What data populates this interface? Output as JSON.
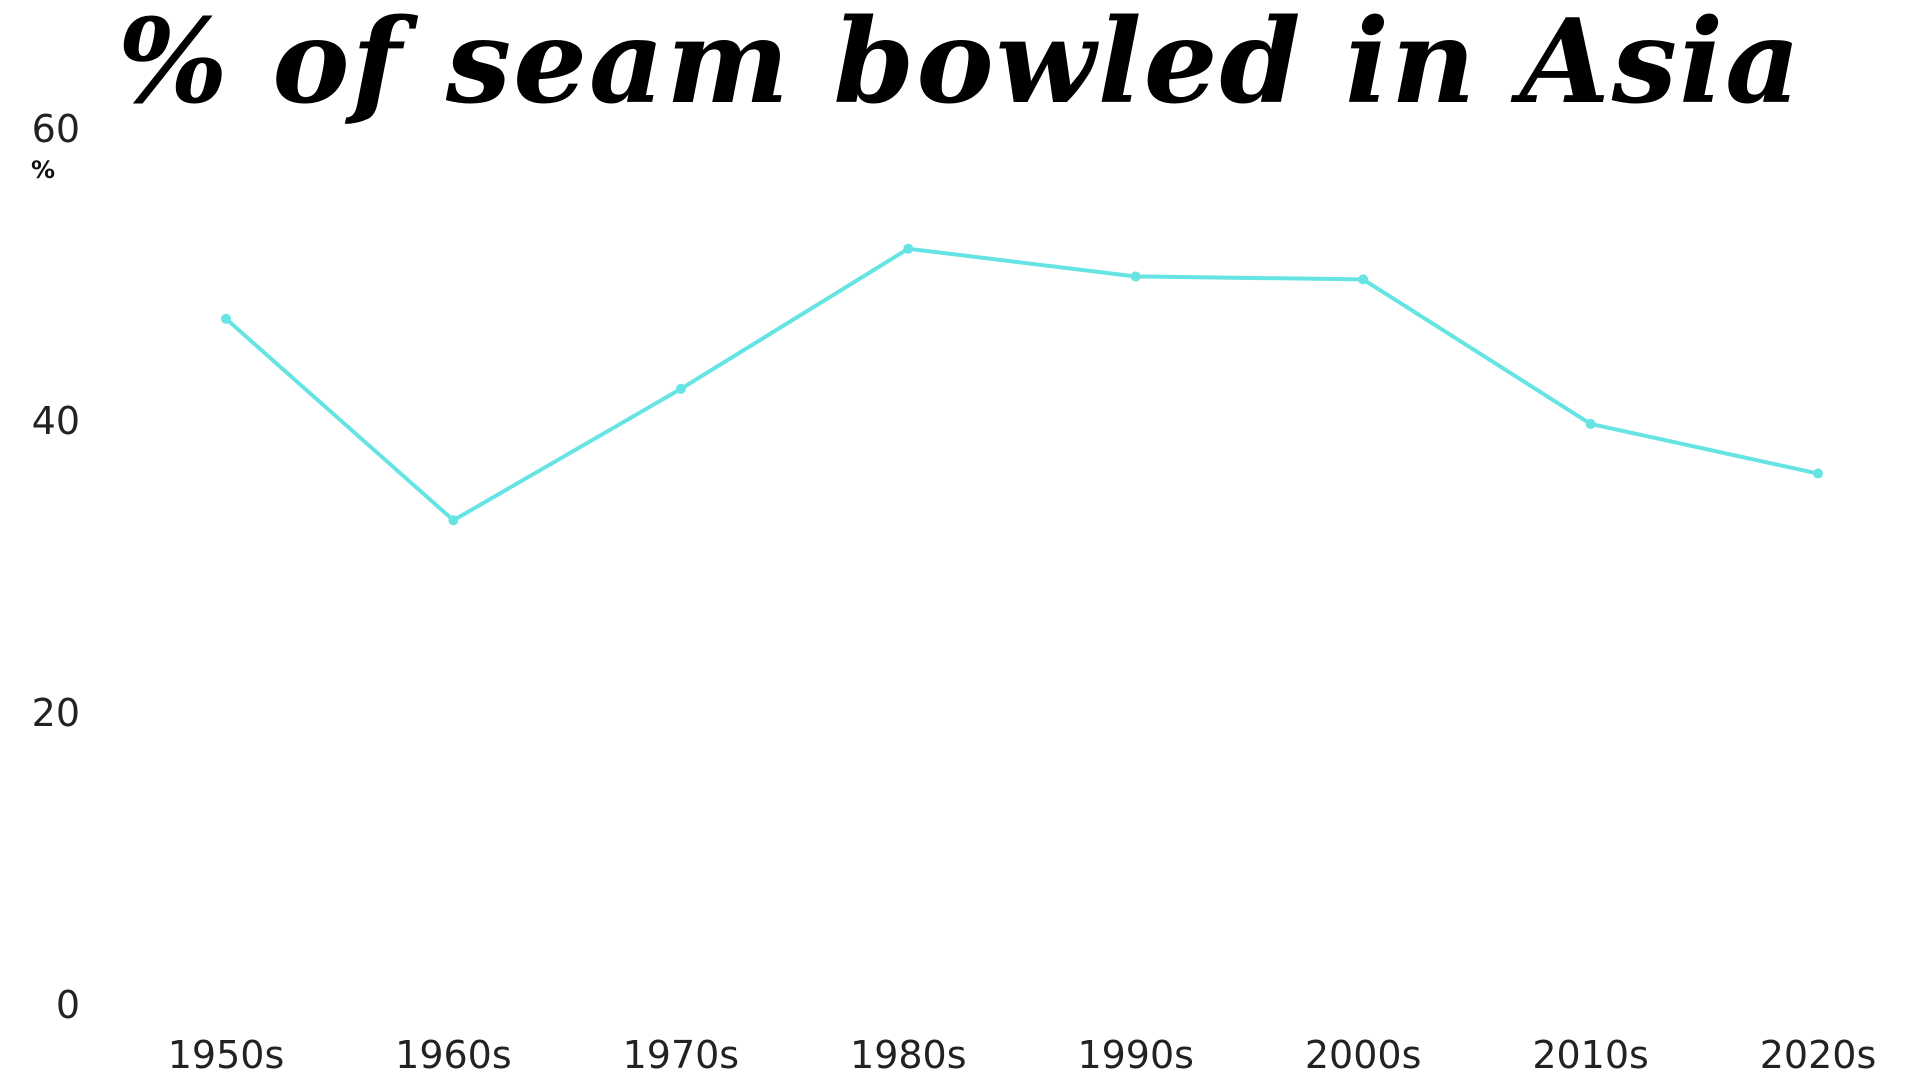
{
  "chart_data": {
    "type": "line",
    "title": "% of seam bowled in Asia",
    "unit_label": "%",
    "categories": [
      "1950s",
      "1960s",
      "1970s",
      "1980s",
      "1990s",
      "2000s",
      "2010s",
      "2020s"
    ],
    "series": [
      {
        "values": [
          47.0,
          33.2,
          42.2,
          51.8,
          49.9,
          49.7,
          39.8,
          36.4
        ]
      }
    ],
    "yticks": [
      0,
      20,
      40,
      60
    ],
    "ylim": [
      0,
      60
    ],
    "grid": false,
    "colors": {
      "line": "#66e3e3",
      "text": "#222222",
      "title": "#000000"
    }
  }
}
